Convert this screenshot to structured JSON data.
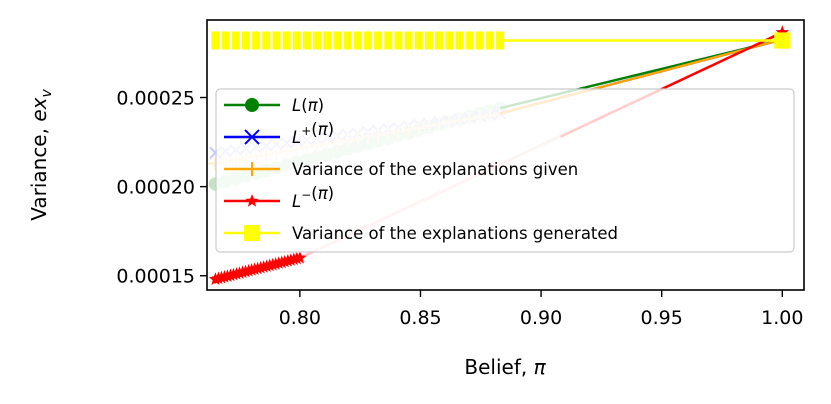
{
  "chart_data": {
    "type": "line",
    "xlabel_text": "Belief, ",
    "xlabel_symbol": "π",
    "ylabel_text": "Variance, ",
    "ylabel_symbol": "ex",
    "ylabel_sub": "v",
    "xlim": [
      0.7615,
      1.009
    ],
    "ylim": [
      0.000142,
      0.0002935
    ],
    "xticks": [
      {
        "value": 0.8,
        "label": "0.80"
      },
      {
        "value": 0.85,
        "label": "0.85"
      },
      {
        "value": 0.9,
        "label": "0.90"
      },
      {
        "value": 0.95,
        "label": "0.95"
      },
      {
        "value": 1.0,
        "label": "1.00"
      }
    ],
    "yticks": [
      {
        "value": 0.00015,
        "label": "0.00015"
      },
      {
        "value": 0.0002,
        "label": "0.00020"
      },
      {
        "value": 0.00025,
        "label": "0.00025"
      }
    ],
    "grid": false,
    "legend_position": "center-left",
    "series": [
      {
        "name": "L(π)",
        "legend_main": "L",
        "legend_sup": "",
        "legend_tail": "(π)",
        "color": "#008000",
        "marker": "circle",
        "line_x": [
          0.883,
          1.0
        ],
        "line_y": [
          0.000244,
          0.0002825
        ],
        "scatter_x_range": [
          0.765,
          0.883
        ],
        "scatter_y_range": [
          0.0002015,
          0.000244
        ],
        "end_value": [
          1.0,
          0.0002825
        ]
      },
      {
        "name": "L+(π)",
        "legend_main": "L",
        "legend_sup": "+",
        "legend_tail": "(π)",
        "color": "#0000ff",
        "marker": "x",
        "line_x": [
          0.883,
          1.0
        ],
        "line_y": [
          0.000241,
          0.0002825
        ],
        "scatter_x_range": [
          0.765,
          0.883
        ],
        "scatter_y_range": [
          0.000219,
          0.000241
        ],
        "end_value": [
          1.0,
          0.0002825
        ]
      },
      {
        "name": "Variance of the explanations given",
        "legend_main": "Variance of the explanations given",
        "legend_sup": "",
        "legend_tail": "",
        "color": "#ffa500",
        "marker": "plus",
        "line_x": [
          0.883,
          1.0
        ],
        "line_y": [
          0.000241,
          0.0002825
        ],
        "scatter_x_range": [
          0.765,
          0.883
        ],
        "scatter_y_range": [
          0.000213,
          0.000241
        ],
        "end_value": [
          1.0,
          0.0002825
        ]
      },
      {
        "name": "L−(π)",
        "legend_main": "L",
        "legend_sup": "−",
        "legend_tail": "(π)",
        "color": "#ff0000",
        "marker": "star",
        "line_x": [
          0.8,
          1.0
        ],
        "line_y": [
          0.00016,
          0.0002865
        ],
        "scatter_x_range": [
          0.765,
          0.8
        ],
        "scatter_y_range": [
          0.000148,
          0.00016
        ],
        "end_value": [
          1.0,
          0.0002865
        ]
      },
      {
        "name": "Variance of the explanations generated",
        "legend_main": "Variance of the explanations generated",
        "legend_sup": "",
        "legend_tail": "",
        "color": "#ffff00",
        "marker": "square",
        "line_x": [
          0.883,
          1.0
        ],
        "line_y": [
          0.000282,
          0.000282
        ],
        "scatter_x_range": [
          0.765,
          0.883
        ],
        "scatter_y_range": [
          0.000282,
          0.000282
        ],
        "end_value": [
          1.0,
          0.000282
        ]
      }
    ]
  }
}
